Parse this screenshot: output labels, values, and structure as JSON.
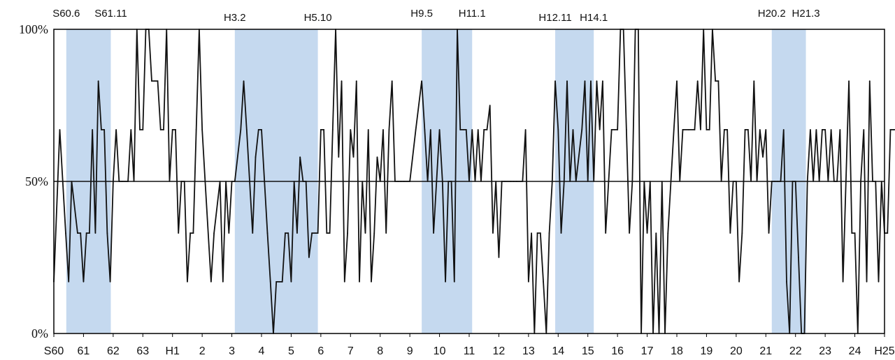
{
  "chart_data": {
    "type": "line",
    "title": "",
    "xlabel": "",
    "ylabel": "",
    "ylim": [
      0,
      100
    ],
    "grid": false,
    "legend": "none",
    "y_ticks": [
      "0%",
      "50%",
      "100%"
    ],
    "x_ticks": [
      "S60",
      "61",
      "62",
      "63",
      "H1",
      "2",
      "3",
      "4",
      "5",
      "6",
      "7",
      "8",
      "9",
      "10",
      "11",
      "12",
      "13",
      "14",
      "15",
      "16",
      "17",
      "18",
      "19",
      "20",
      "21",
      "22",
      "23",
      "24",
      "H25"
    ],
    "reference_line": 50,
    "colors": {
      "line": "#111111",
      "band": "#c5d9ef",
      "frame": "#000000"
    },
    "recession_bands": [
      {
        "start": 0.42,
        "end": 1.92
      },
      {
        "start": 6.1,
        "end": 8.9
      },
      {
        "start": 12.4,
        "end": 14.1
      },
      {
        "start": 16.9,
        "end": 18.2
      },
      {
        "start": 24.2,
        "end": 25.35
      }
    ],
    "phase_labels": [
      {
        "label": "S60.6",
        "x": 0.42
      },
      {
        "label": "S61.11",
        "x": 1.92
      },
      {
        "label": "H3.2",
        "x": 6.1
      },
      {
        "label": "H5.10",
        "x": 8.9
      },
      {
        "label": "H9.5",
        "x": 12.4
      },
      {
        "label": "H11.1",
        "x": 14.1
      },
      {
        "label": "H12.11",
        "x": 16.9
      },
      {
        "label": "H14.1",
        "x": 18.2
      },
      {
        "label": "H20.2",
        "x": 24.2
      },
      {
        "label": "H21.3",
        "x": 25.35
      }
    ],
    "series": [
      {
        "values": [
          [
            0,
            17
          ],
          [
            0.2,
            67
          ],
          [
            0.4,
            33
          ],
          [
            0.5,
            17
          ],
          [
            0.6,
            50
          ],
          [
            0.8,
            33
          ],
          [
            0.9,
            33
          ],
          [
            1.0,
            17
          ],
          [
            1.1,
            33
          ],
          [
            1.2,
            33
          ],
          [
            1.3,
            67
          ],
          [
            1.4,
            33
          ],
          [
            1.5,
            83
          ],
          [
            1.6,
            67
          ],
          [
            1.7,
            67
          ],
          [
            1.8,
            33
          ],
          [
            1.9,
            17
          ],
          [
            2.0,
            50
          ],
          [
            2.1,
            67
          ],
          [
            2.2,
            50
          ],
          [
            2.3,
            50
          ],
          [
            2.5,
            50
          ],
          [
            2.6,
            67
          ],
          [
            2.7,
            50
          ],
          [
            2.8,
            100
          ],
          [
            2.9,
            67
          ],
          [
            3.0,
            67
          ],
          [
            3.1,
            100
          ],
          [
            3.2,
            100
          ],
          [
            3.3,
            83
          ],
          [
            3.4,
            83
          ],
          [
            3.5,
            83
          ],
          [
            3.6,
            67
          ],
          [
            3.7,
            67
          ],
          [
            3.8,
            100
          ],
          [
            3.9,
            50
          ],
          [
            4.0,
            67
          ],
          [
            4.1,
            67
          ],
          [
            4.2,
            33
          ],
          [
            4.3,
            50
          ],
          [
            4.4,
            50
          ],
          [
            4.5,
            17
          ],
          [
            4.6,
            33
          ],
          [
            4.7,
            33
          ],
          [
            4.8,
            67
          ],
          [
            4.9,
            100
          ],
          [
            5.0,
            67
          ],
          [
            5.1,
            50
          ],
          [
            5.3,
            17
          ],
          [
            5.4,
            33
          ],
          [
            5.6,
            50
          ],
          [
            5.7,
            17
          ],
          [
            5.8,
            50
          ],
          [
            5.9,
            33
          ],
          [
            6.0,
            50
          ],
          [
            6.1,
            50
          ],
          [
            6.3,
            67
          ],
          [
            6.4,
            83
          ],
          [
            6.5,
            67
          ],
          [
            6.7,
            33
          ],
          [
            6.8,
            58
          ],
          [
            6.9,
            67
          ],
          [
            7.0,
            67
          ],
          [
            7.1,
            50
          ],
          [
            7.2,
            33
          ],
          [
            7.3,
            17
          ],
          [
            7.4,
            0
          ],
          [
            7.5,
            17
          ],
          [
            7.6,
            17
          ],
          [
            7.7,
            17
          ],
          [
            7.8,
            33
          ],
          [
            7.9,
            33
          ],
          [
            8.0,
            17
          ],
          [
            8.1,
            50
          ],
          [
            8.2,
            33
          ],
          [
            8.3,
            58
          ],
          [
            8.4,
            50
          ],
          [
            8.5,
            50
          ],
          [
            8.6,
            25
          ],
          [
            8.7,
            33
          ],
          [
            8.8,
            33
          ],
          [
            8.9,
            33
          ],
          [
            9.0,
            67
          ],
          [
            9.1,
            67
          ],
          [
            9.2,
            33
          ],
          [
            9.3,
            33
          ],
          [
            9.4,
            67
          ],
          [
            9.5,
            100
          ],
          [
            9.6,
            58
          ],
          [
            9.7,
            83
          ],
          [
            9.8,
            17
          ],
          [
            9.9,
            33
          ],
          [
            10.0,
            67
          ],
          [
            10.1,
            58
          ],
          [
            10.2,
            83
          ],
          [
            10.3,
            17
          ],
          [
            10.4,
            50
          ],
          [
            10.5,
            33
          ],
          [
            10.6,
            67
          ],
          [
            10.7,
            17
          ],
          [
            10.8,
            33
          ],
          [
            10.9,
            58
          ],
          [
            11.0,
            50
          ],
          [
            11.1,
            67
          ],
          [
            11.2,
            33
          ],
          [
            11.3,
            67
          ],
          [
            11.4,
            83
          ],
          [
            11.5,
            50
          ],
          [
            11.6,
            50
          ],
          [
            11.7,
            50
          ],
          [
            11.8,
            50
          ],
          [
            12.0,
            50
          ],
          [
            12.2,
            67
          ],
          [
            12.4,
            83
          ],
          [
            12.5,
            67
          ],
          [
            12.6,
            50
          ],
          [
            12.7,
            67
          ],
          [
            12.8,
            33
          ],
          [
            12.9,
            50
          ],
          [
            13.0,
            67
          ],
          [
            13.1,
            50
          ],
          [
            13.2,
            17
          ],
          [
            13.3,
            50
          ],
          [
            13.4,
            50
          ],
          [
            13.5,
            17
          ],
          [
            13.6,
            100
          ],
          [
            13.7,
            67
          ],
          [
            13.8,
            67
          ],
          [
            13.9,
            67
          ],
          [
            14.0,
            50
          ],
          [
            14.1,
            67
          ],
          [
            14.2,
            50
          ],
          [
            14.3,
            67
          ],
          [
            14.4,
            50
          ],
          [
            14.5,
            67
          ],
          [
            14.6,
            67
          ],
          [
            14.7,
            75
          ],
          [
            14.8,
            33
          ],
          [
            14.9,
            50
          ],
          [
            15.0,
            25
          ],
          [
            15.1,
            50
          ],
          [
            15.2,
            50
          ],
          [
            15.4,
            50
          ],
          [
            15.5,
            50
          ],
          [
            15.6,
            50
          ],
          [
            15.8,
            50
          ],
          [
            15.9,
            67
          ],
          [
            16.0,
            17
          ],
          [
            16.1,
            33
          ],
          [
            16.2,
            0
          ],
          [
            16.3,
            33
          ],
          [
            16.4,
            33
          ],
          [
            16.5,
            17
          ],
          [
            16.6,
            0
          ],
          [
            16.7,
            33
          ],
          [
            16.8,
            50
          ],
          [
            16.9,
            83
          ],
          [
            17.0,
            67
          ],
          [
            17.1,
            33
          ],
          [
            17.2,
            50
          ],
          [
            17.3,
            83
          ],
          [
            17.4,
            50
          ],
          [
            17.5,
            67
          ],
          [
            17.6,
            50
          ],
          [
            17.8,
            67
          ],
          [
            17.9,
            83
          ],
          [
            18.0,
            50
          ],
          [
            18.1,
            83
          ],
          [
            18.2,
            50
          ],
          [
            18.3,
            83
          ],
          [
            18.4,
            67
          ],
          [
            18.5,
            83
          ],
          [
            18.6,
            33
          ],
          [
            18.7,
            50
          ],
          [
            18.8,
            67
          ],
          [
            18.9,
            67
          ],
          [
            19.0,
            67
          ],
          [
            19.1,
            100
          ],
          [
            19.2,
            100
          ],
          [
            19.3,
            67
          ],
          [
            19.4,
            33
          ],
          [
            19.5,
            50
          ],
          [
            19.6,
            100
          ],
          [
            19.7,
            100
          ],
          [
            19.8,
            0
          ],
          [
            19.9,
            50
          ],
          [
            20.0,
            33
          ],
          [
            20.1,
            50
          ],
          [
            20.2,
            0
          ],
          [
            20.3,
            33
          ],
          [
            20.4,
            0
          ],
          [
            20.5,
            50
          ],
          [
            20.6,
            0
          ],
          [
            20.7,
            33
          ],
          [
            20.8,
            50
          ],
          [
            20.9,
            67
          ],
          [
            21.0,
            83
          ],
          [
            21.1,
            50
          ],
          [
            21.2,
            67
          ],
          [
            21.4,
            67
          ],
          [
            21.6,
            67
          ],
          [
            21.7,
            83
          ],
          [
            21.8,
            67
          ],
          [
            21.9,
            100
          ],
          [
            22.0,
            67
          ],
          [
            22.1,
            67
          ],
          [
            22.2,
            100
          ],
          [
            22.3,
            83
          ],
          [
            22.4,
            83
          ],
          [
            22.5,
            50
          ],
          [
            22.6,
            67
          ],
          [
            22.7,
            67
          ],
          [
            22.8,
            33
          ],
          [
            22.9,
            50
          ],
          [
            23.0,
            50
          ],
          [
            23.1,
            17
          ],
          [
            23.2,
            33
          ],
          [
            23.3,
            67
          ],
          [
            23.4,
            67
          ],
          [
            23.5,
            50
          ],
          [
            23.6,
            83
          ],
          [
            23.7,
            50
          ],
          [
            23.8,
            67
          ],
          [
            23.9,
            58
          ],
          [
            24.0,
            67
          ],
          [
            24.1,
            33
          ],
          [
            24.2,
            50
          ],
          [
            24.3,
            50
          ],
          [
            24.4,
            50
          ],
          [
            24.5,
            50
          ],
          [
            24.6,
            67
          ],
          [
            24.7,
            17
          ],
          [
            24.8,
            0
          ],
          [
            24.9,
            50
          ],
          [
            25.0,
            50
          ],
          [
            25.1,
            25
          ],
          [
            25.2,
            0
          ],
          [
            25.3,
            0
          ],
          [
            25.4,
            50
          ],
          [
            25.5,
            67
          ],
          [
            25.6,
            50
          ],
          [
            25.7,
            67
          ],
          [
            25.8,
            50
          ],
          [
            25.9,
            67
          ],
          [
            26.0,
            67
          ],
          [
            26.1,
            50
          ],
          [
            26.2,
            67
          ],
          [
            26.3,
            50
          ],
          [
            26.4,
            50
          ],
          [
            26.5,
            67
          ],
          [
            26.6,
            17
          ],
          [
            26.7,
            50
          ],
          [
            26.8,
            83
          ],
          [
            26.9,
            33
          ],
          [
            27.0,
            33
          ],
          [
            27.1,
            0
          ],
          [
            27.2,
            50
          ],
          [
            27.3,
            67
          ],
          [
            27.4,
            17
          ],
          [
            27.5,
            83
          ],
          [
            27.6,
            50
          ],
          [
            27.7,
            50
          ],
          [
            27.8,
            17
          ],
          [
            27.9,
            50
          ],
          [
            28.0,
            33
          ],
          [
            28.1,
            33
          ],
          [
            28.2,
            67
          ],
          [
            28.3,
            67
          ],
          [
            28.4,
            67
          ],
          [
            28.5,
            67
          ],
          [
            28.6,
            50
          ],
          [
            28.7,
            67
          ]
        ]
      }
    ]
  }
}
